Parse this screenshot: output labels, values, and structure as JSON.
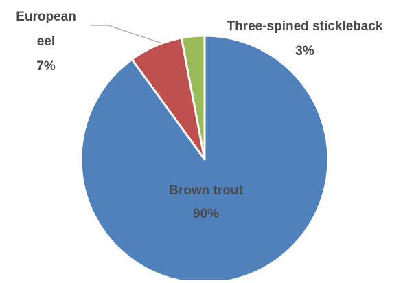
{
  "chart_data": {
    "type": "pie",
    "title": "",
    "slices": [
      {
        "name": "Brown trout",
        "value": 90,
        "label": "90%",
        "color": "#4f81bd"
      },
      {
        "name": "European eel",
        "value": 7,
        "label": "7%",
        "color": "#c0504d"
      },
      {
        "name": "Three-spined stickleback",
        "value": 3,
        "label": "3%",
        "color": "#9bbb59"
      }
    ],
    "label_lines": {
      "brown_trout": [
        "Brown trout",
        "90%"
      ],
      "european_eel": [
        "European",
        "eel",
        "7%"
      ],
      "three_spined_stickleback": [
        "Three-spined stickleback",
        "3%"
      ]
    },
    "legend": "none"
  }
}
